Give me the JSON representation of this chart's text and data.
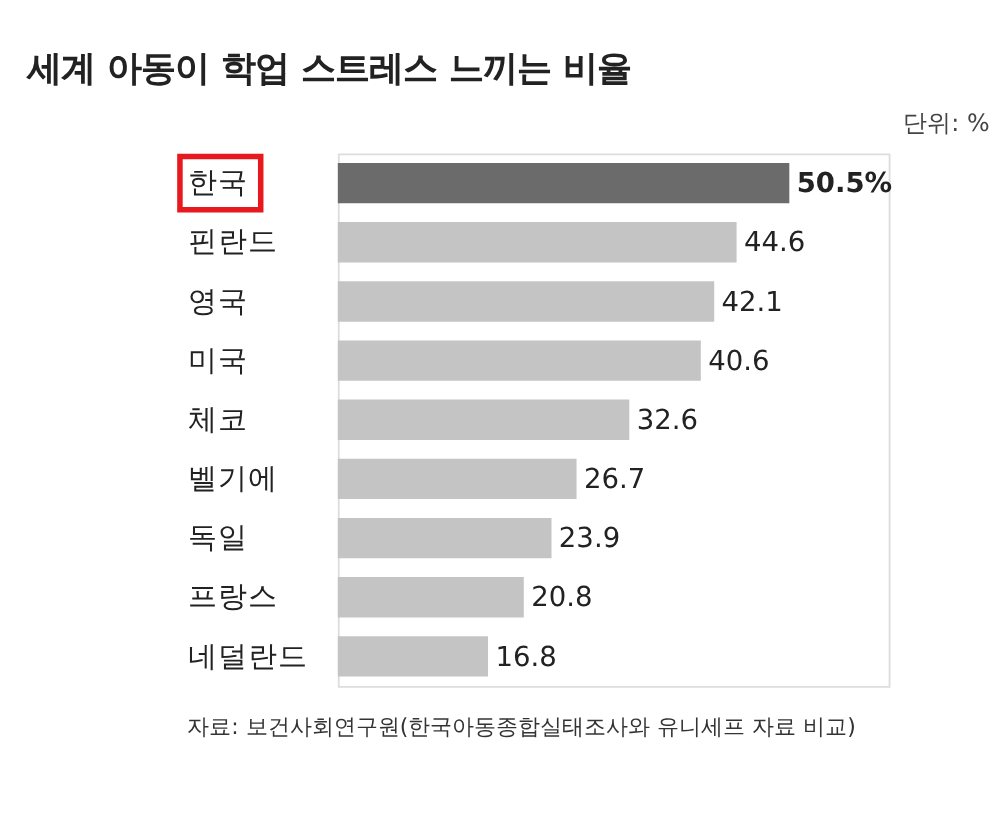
{
  "chart_data": {
    "type": "bar",
    "orientation": "horizontal",
    "title": "세계 아동이 학업 스트레스 느끼는 비율",
    "categories": [
      "한국",
      "핀란드",
      "영국",
      "미국",
      "체코",
      "벨기에",
      "독일",
      "프랑스",
      "네덜란드"
    ],
    "values": [
      50.5,
      44.6,
      42.1,
      40.6,
      32.6,
      26.7,
      23.9,
      20.8,
      16.8
    ],
    "colors": [
      "#6b6b6b",
      "#c4c4c4",
      "#c4c4c4",
      "#c4c4c4",
      "#c4c4c4",
      "#c4c4c4",
      "#c4c4c4",
      "#c4c4c4",
      "#c4c4c4"
    ],
    "value_labels": [
      "50.5%",
      "44.6",
      "42.1",
      "40.6",
      "32.6",
      "26.7",
      "23.9",
      "20.8",
      "16.8"
    ],
    "annotations": [
      "단위: %",
      "자료: 보건사회연구원(한국아동종합실태조사와 유니세프 자료 비교)"
    ]
  }
}
